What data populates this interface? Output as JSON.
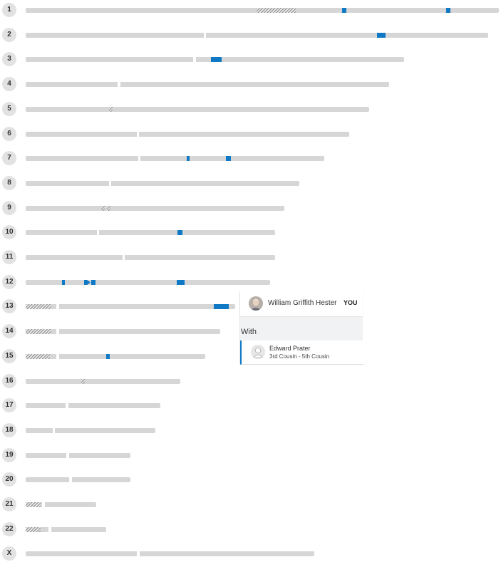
{
  "chromosomes": [
    {
      "label": "1"
    },
    {
      "label": "2"
    },
    {
      "label": "3"
    },
    {
      "label": "4"
    },
    {
      "label": "5"
    },
    {
      "label": "6"
    },
    {
      "label": "7"
    },
    {
      "label": "8"
    },
    {
      "label": "9"
    },
    {
      "label": "10"
    },
    {
      "label": "11"
    },
    {
      "label": "12"
    },
    {
      "label": "13"
    },
    {
      "label": "14"
    },
    {
      "label": "15"
    },
    {
      "label": "16"
    },
    {
      "label": "17"
    },
    {
      "label": "18"
    },
    {
      "label": "19"
    },
    {
      "label": "20"
    },
    {
      "label": "21"
    },
    {
      "label": "22"
    },
    {
      "label": "X"
    }
  ],
  "colors": {
    "match_segment": "#0f79c6",
    "chromosome_bar": "#d6d6d6",
    "label_badge": "#e2e2e2"
  },
  "legend": {
    "you": {
      "name": "William Griffith Hester",
      "badge": "YOU",
      "avatar_icon": "user-photo"
    },
    "with_label": "With",
    "matches": [
      {
        "name": "Edward Prater",
        "relationship": "3rd Cousin - 5th Cousin",
        "avatar_icon": "default-user-icon",
        "color": "#0f79c6"
      }
    ]
  }
}
